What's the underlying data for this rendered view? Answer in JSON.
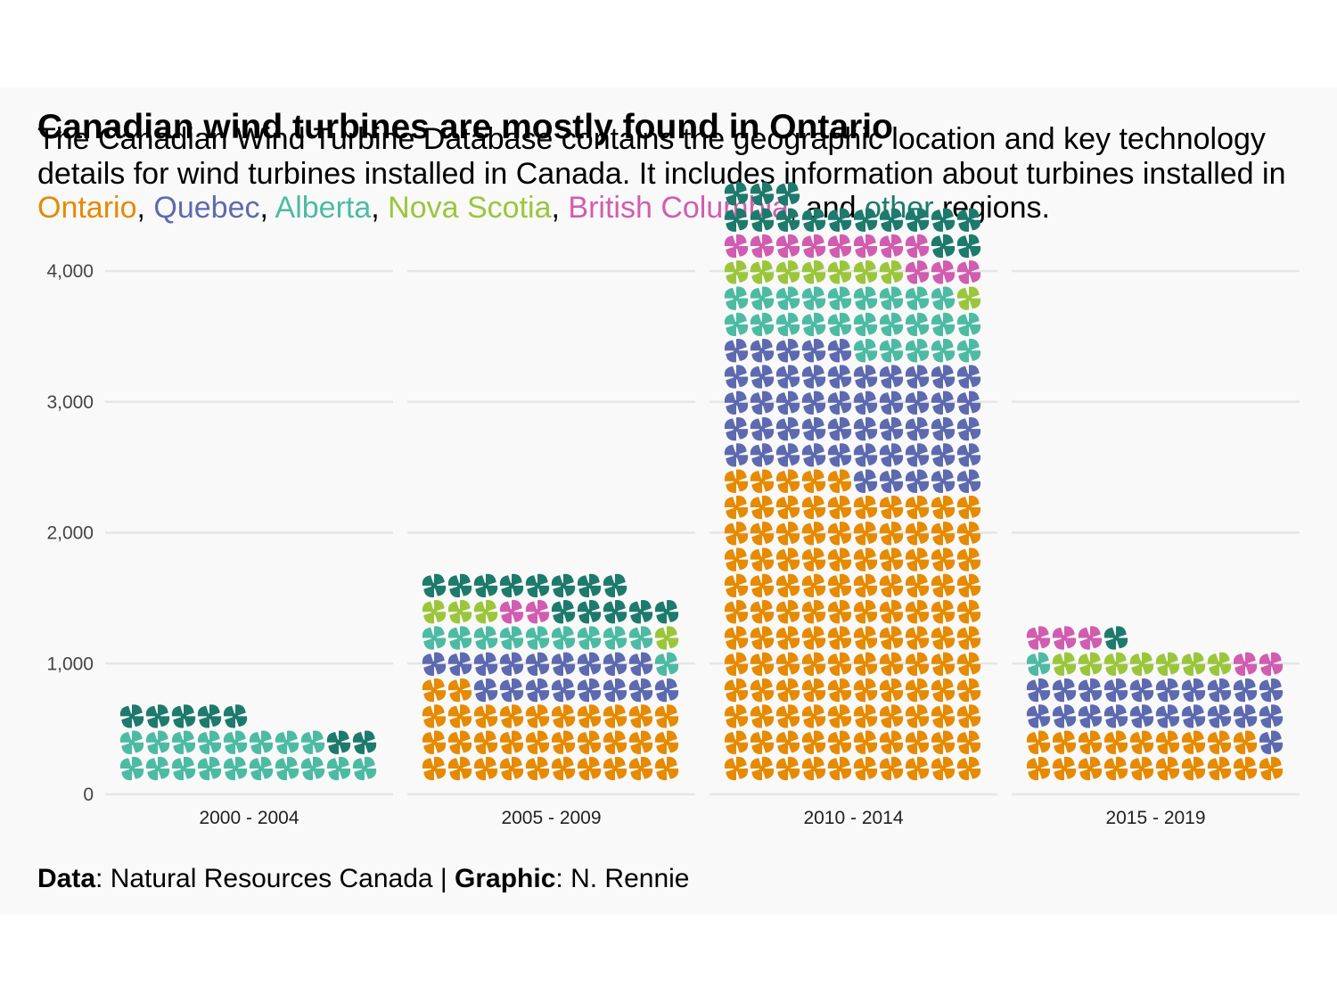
{
  "title": "Canadian wind turbines are mostly found in Ontario",
  "subtitle": {
    "intro": "The Canadian Wind Turbine Database contains the geographic location and key technology details for wind turbines installed in Canada. It includes information about turbines installed in ",
    "ontario": "Ontario",
    "sep1": ", ",
    "quebec": "Quebec",
    "sep2": ", ",
    "alberta": "Alberta",
    "sep3": ", ",
    "nova_scotia": "Nova Scotia",
    "sep4": ", ",
    "british_columbia": "British Columbia",
    "sep5": ", and ",
    "other": "other",
    "outro": " regions."
  },
  "caption": {
    "data_label": "Data",
    "data_value": ": Natural Resources Canada | ",
    "graphic_label": "Graphic",
    "graphic_value": ": N. Rennie"
  },
  "colors": {
    "background": "#f9f9f9",
    "grid": "#e6e6e6",
    "ontario": "#E68A00",
    "quebec": "#5D6AB0",
    "alberta": "#4DBBA3",
    "nova_scotia": "#9BC63B",
    "british_columbia": "#D15DB0",
    "other": "#1D7A6C"
  },
  "chart_data": {
    "type": "waffle",
    "unit_per_icon": 20,
    "icon": "pinwheel-icon",
    "ylim": [
      0,
      4000
    ],
    "yticks": [
      "0",
      "1,000",
      "2,000",
      "3,000",
      "4,000"
    ],
    "ytick_values": [
      0,
      1000,
      2000,
      3000,
      4000
    ],
    "categories": [
      "2000 - 2004",
      "2005 - 2009",
      "2010 - 2014",
      "2015 - 2019"
    ],
    "series_keys": [
      "ontario",
      "quebec",
      "alberta",
      "nova_scotia",
      "british_columbia",
      "other"
    ],
    "series": [
      {
        "name": "Ontario",
        "key": "ontario",
        "values": [
          0,
          640,
          2300,
          380
        ]
      },
      {
        "name": "Quebec",
        "key": "quebec",
        "values": [
          0,
          340,
          1000,
          420
        ]
      },
      {
        "name": "Alberta",
        "key": "alberta",
        "values": [
          360,
          200,
          480,
          20
        ]
      },
      {
        "name": "Nova Scotia",
        "key": "nova_scotia",
        "values": [
          0,
          80,
          160,
          140
        ]
      },
      {
        "name": "British Columbia",
        "key": "british_columbia",
        "values": [
          0,
          40,
          220,
          100
        ]
      },
      {
        "name": "Other",
        "key": "other",
        "values": [
          140,
          260,
          300,
          20
        ]
      }
    ]
  }
}
